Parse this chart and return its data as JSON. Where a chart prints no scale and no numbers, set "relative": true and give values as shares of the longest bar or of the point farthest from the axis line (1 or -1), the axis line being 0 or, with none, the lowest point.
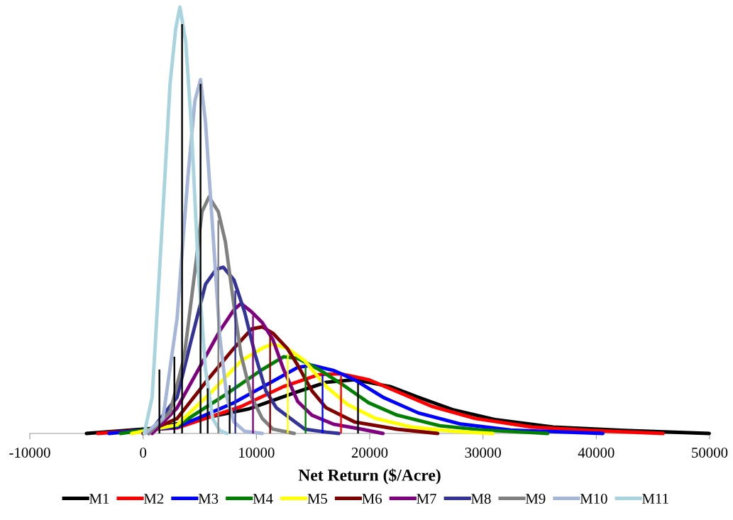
{
  "chart_data": {
    "type": "line",
    "relative": true,
    "xlabel": "Net Return ($/Acre)",
    "xlim": [
      -10000,
      50000
    ],
    "xticks": [
      -10000,
      0,
      10000,
      20000,
      30000,
      40000,
      50000
    ],
    "legend": "bottom",
    "grid": false,
    "marker": "none",
    "line_style": "solid",
    "series": [
      {
        "type": "bar",
        "x": [
          1440,
          2760,
          3440,
          5070,
          5700,
          6640,
          7640,
          8140,
          9700,
          11210,
          12770,
          14340,
          15840,
          17470,
          18970
        ],
        "values": [
          0.15,
          0.18,
          0.96,
          0.82,
          0.106,
          0.5,
          0.113,
          0.335,
          0.276,
          0.23,
          0.185,
          0.156,
          0.138,
          0.135,
          0.118
        ],
        "colors": [
          "#000000",
          "#000000",
          "#000000",
          "#000000",
          "#000000",
          "#808080",
          "#000000",
          "#333399",
          "#800080",
          "#800000",
          "#ffff00",
          "#008000",
          "#0000ff",
          "#ff0000",
          "#000000"
        ]
      },
      {
        "name": "M1",
        "color": "#000000",
        "x": [
          -5000,
          1000,
          9270,
          13650,
          16160,
          18660,
          21800,
          24300,
          27430,
          31190,
          36200,
          42460,
          49970
        ],
        "values": [
          0,
          0.012,
          0.057,
          0.098,
          0.12,
          0.126,
          0.11,
          0.085,
          0.055,
          0.032,
          0.015,
          0.007,
          0
        ]
      },
      {
        "name": "M2",
        "color": "#ff0000",
        "x": [
          -4000,
          3000,
          8640,
          12400,
          15530,
          17410,
          19910,
          22420,
          25550,
          29310,
          34320,
          39330,
          45900
        ],
        "values": [
          0,
          0.013,
          0.063,
          0.11,
          0.138,
          0.14,
          0.126,
          0.098,
          0.063,
          0.035,
          0.015,
          0.007,
          0
        ]
      },
      {
        "name": "M3",
        "color": "#0000ff",
        "x": [
          -3000,
          3000,
          8020,
          11150,
          13650,
          14900,
          16780,
          18660,
          21170,
          24300,
          28060,
          32440,
          40580
        ],
        "values": [
          0,
          0.015,
          0.072,
          0.118,
          0.155,
          0.16,
          0.148,
          0.126,
          0.085,
          0.048,
          0.022,
          0.008,
          0
        ]
      },
      {
        "name": "M4",
        "color": "#008000",
        "x": [
          -2000,
          3000,
          7390,
          10520,
          12400,
          13650,
          15530,
          17410,
          19910,
          22420,
          26180,
          29930,
          35700
        ],
        "values": [
          0,
          0.018,
          0.093,
          0.15,
          0.18,
          0.176,
          0.15,
          0.118,
          0.072,
          0.043,
          0.018,
          0.008,
          0
        ]
      },
      {
        "name": "M5",
        "color": "#ffff00",
        "x": [
          -1000,
          3000,
          6140,
          8640,
          10520,
          11460,
          12710,
          14280,
          16160,
          18040,
          20540,
          23670,
          27430,
          30870
        ],
        "values": [
          0,
          0.02,
          0.1,
          0.17,
          0.2,
          0.21,
          0.2,
          0.17,
          0.11,
          0.068,
          0.035,
          0.015,
          0.005,
          0
        ]
      },
      {
        "name": "M6",
        "color": "#800000",
        "x": [
          0,
          3000,
          5510,
          8020,
          9580,
          10520,
          11460,
          12710,
          13650,
          14900,
          16160,
          18660,
          22420,
          26000
        ],
        "values": [
          0,
          0.035,
          0.12,
          0.2,
          0.245,
          0.25,
          0.235,
          0.2,
          0.16,
          0.1,
          0.06,
          0.027,
          0.01,
          0
        ]
      },
      {
        "name": "M7",
        "color": "#800080",
        "x": [
          800,
          3000,
          4880,
          6760,
          8020,
          8640,
          9580,
          10520,
          11460,
          12400,
          13650,
          14900,
          16780,
          19290,
          21170
        ],
        "values": [
          0,
          0.06,
          0.15,
          0.24,
          0.29,
          0.305,
          0.285,
          0.26,
          0.22,
          0.15,
          0.075,
          0.043,
          0.022,
          0.01,
          0
        ]
      },
      {
        "name": "M8",
        "color": "#333399",
        "x": [
          500,
          3000,
          4260,
          5510,
          6450,
          7080,
          8020,
          8960,
          9890,
          10830,
          11770,
          13020,
          14280,
          16160,
          17280
        ],
        "values": [
          0,
          0.085,
          0.22,
          0.35,
          0.385,
          0.39,
          0.36,
          0.285,
          0.185,
          0.1,
          0.06,
          0.035,
          0.01,
          0.003,
          0
        ]
      },
      {
        "name": "M9",
        "color": "#808080",
        "x": [
          500,
          2380,
          3630,
          4570,
          5200,
          5820,
          6640,
          7260,
          8020,
          8640,
          9580,
          10520,
          11460,
          13340
        ],
        "values": [
          0,
          0.05,
          0.18,
          0.38,
          0.52,
          0.555,
          0.52,
          0.45,
          0.3,
          0.185,
          0.085,
          0.035,
          0.01,
          0
        ]
      },
      {
        "name": "M10",
        "color": "#a6b6d8",
        "x": [
          200,
          1750,
          3000,
          3950,
          4570,
          5070,
          5510,
          6140,
          6760,
          7390,
          8020,
          8960,
          10520
        ],
        "values": [
          0,
          0.035,
          0.27,
          0.6,
          0.78,
          0.83,
          0.73,
          0.48,
          0.23,
          0.085,
          0.027,
          0.005,
          0
        ]
      },
      {
        "name": "M11",
        "color": "#a8d4e0",
        "x": [
          100,
          800,
          1750,
          2380,
          2880,
          3250,
          3760,
          4260,
          4880,
          5510,
          6140,
          6760,
          7390
        ],
        "values": [
          0,
          0.085,
          0.52,
          0.82,
          0.95,
          1,
          0.92,
          0.72,
          0.38,
          0.15,
          0.035,
          0.007,
          0
        ]
      }
    ]
  }
}
